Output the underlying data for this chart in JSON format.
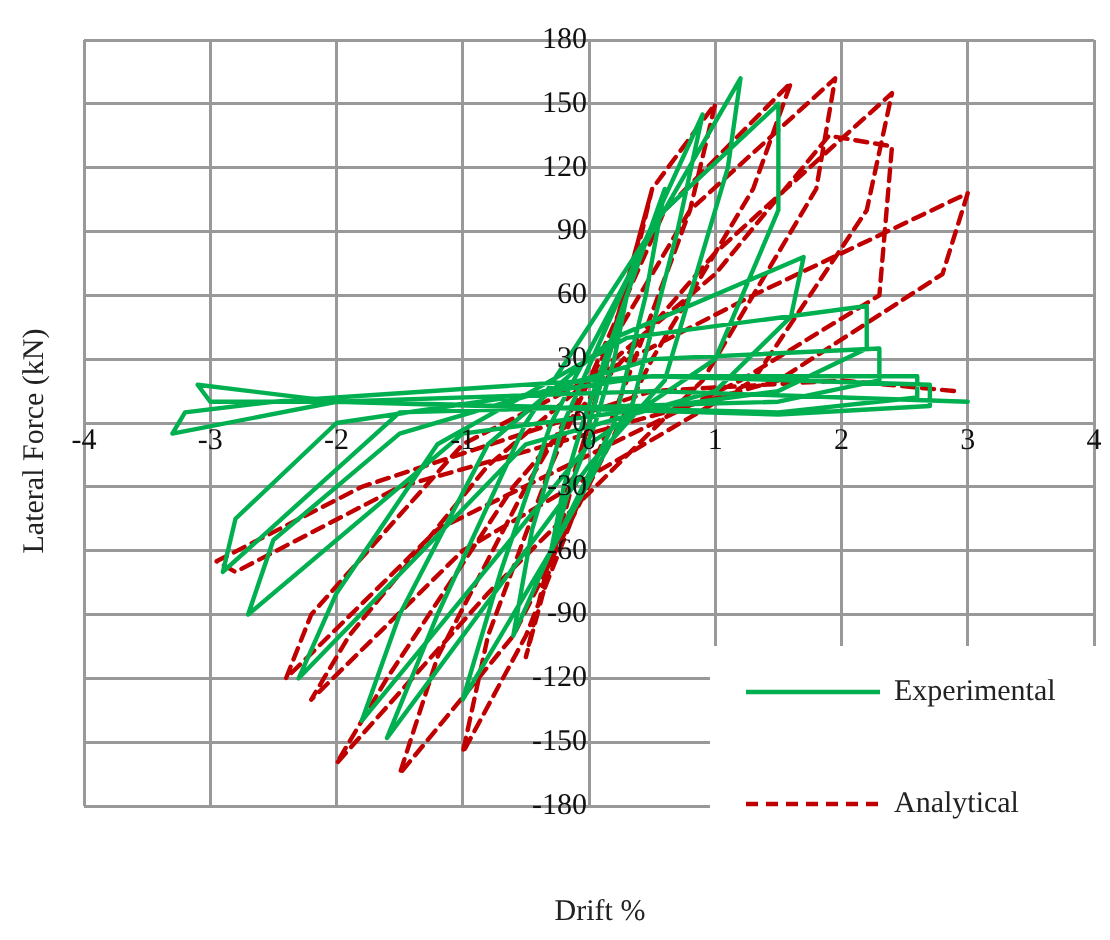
{
  "chart_data": {
    "type": "line",
    "xlabel": "Drift %",
    "ylabel": "Lateral Force (kN)",
    "xlim": [
      -4,
      4
    ],
    "ylim": [
      -180,
      180
    ],
    "xticks": [
      -4,
      -3,
      -2,
      -1,
      0,
      1,
      2,
      3,
      4
    ],
    "yticks": [
      -180,
      -150,
      -120,
      -90,
      -60,
      -30,
      0,
      30,
      60,
      90,
      120,
      150,
      180
    ],
    "grid": true,
    "legend": "bottom right",
    "marker": "none",
    "series": [
      {
        "name": "Experimental",
        "color": "#00b050",
        "line_style": "solid",
        "x": [
          0,
          0.15,
          0.3,
          0.2,
          0.05,
          -0.15,
          -0.3,
          -0.2,
          -0.05,
          0.3,
          0.6,
          0.45,
          0.2,
          -0.3,
          -0.6,
          -0.45,
          -0.2,
          0.4,
          0.9,
          0.7,
          0.35,
          -0.3,
          -1.0,
          -0.7,
          -0.3,
          0.5,
          1.2,
          1.1,
          0.6,
          0,
          -1.6,
          -1.2,
          -0.5,
          0.6,
          1.5,
          1.5,
          1.0,
          0,
          -1.8,
          -1.5,
          -0.8,
          0.2,
          1.7,
          1.6,
          1.0,
          -0.5,
          -2.3,
          -2.0,
          -1.2,
          0.3,
          2.2,
          2.2,
          1.5,
          -1.0,
          -2.7,
          -2.5,
          -1.5,
          0.5,
          2.3,
          2.3,
          1.5,
          -1.5,
          -2.9,
          -2.8,
          -2.0,
          0.5,
          2.6,
          2.6,
          1.5,
          -2.0,
          -3.3,
          -3.2,
          -2.5,
          0.5,
          2.7,
          2.7,
          1.5,
          -2.0,
          -3.1,
          -3.0,
          -2.0,
          0.5,
          3.0
        ],
        "values": [
          0,
          30,
          60,
          30,
          0,
          -30,
          -60,
          -30,
          0,
          60,
          110,
          60,
          0,
          -60,
          -100,
          -50,
          0,
          80,
          145,
          90,
          10,
          -60,
          -130,
          -70,
          0,
          90,
          162,
          120,
          20,
          -20,
          -148,
          -90,
          0,
          100,
          150,
          100,
          30,
          -10,
          -140,
          -90,
          -10,
          40,
          78,
          50,
          15,
          -10,
          -120,
          -80,
          -10,
          40,
          55,
          35,
          15,
          -5,
          -90,
          -55,
          -5,
          30,
          35,
          20,
          10,
          5,
          -70,
          -45,
          0,
          22,
          22,
          12,
          5,
          10,
          -5,
          5,
          10,
          22,
          18,
          8,
          4,
          10,
          18,
          10,
          10,
          15,
          10
        ]
      },
      {
        "name": "Analytical",
        "color": "#c00000",
        "line_style": "dashed",
        "x": [
          0,
          0.25,
          0.5,
          0.3,
          0,
          -0.25,
          -0.5,
          -0.3,
          0,
          0.5,
          1.0,
          0.8,
          0.3,
          -0.5,
          -1.0,
          -0.8,
          -0.3,
          0.6,
          1.6,
          1.3,
          0.5,
          -0.6,
          -1.5,
          -1.2,
          -0.5,
          0.8,
          1.95,
          1.8,
          0.9,
          -0.8,
          -2.0,
          -1.6,
          -0.6,
          1.0,
          2.4,
          2.2,
          1.3,
          -1.0,
          -2.2,
          -1.9,
          -0.8,
          1.0,
          1.9,
          2.4,
          2.3,
          1.2,
          -1.2,
          -2.4,
          -2.2,
          -1.0,
          1.3,
          3.0,
          2.8,
          1.5,
          -1.5,
          -2.8,
          -2.95,
          -1.8,
          0.5,
          2.0,
          2.9
        ],
        "values": [
          0,
          55,
          110,
          60,
          0,
          -55,
          -110,
          -60,
          0,
          110,
          150,
          100,
          20,
          -100,
          -155,
          -100,
          -20,
          100,
          160,
          110,
          30,
          -100,
          -165,
          -110,
          -30,
          100,
          162,
          110,
          20,
          -80,
          -160,
          -120,
          -30,
          80,
          155,
          100,
          20,
          -60,
          -130,
          -100,
          -20,
          70,
          135,
          130,
          60,
          20,
          -50,
          -120,
          -90,
          -10,
          60,
          108,
          70,
          20,
          -30,
          -70,
          -65,
          -30,
          15,
          20,
          15
        ]
      }
    ]
  }
}
